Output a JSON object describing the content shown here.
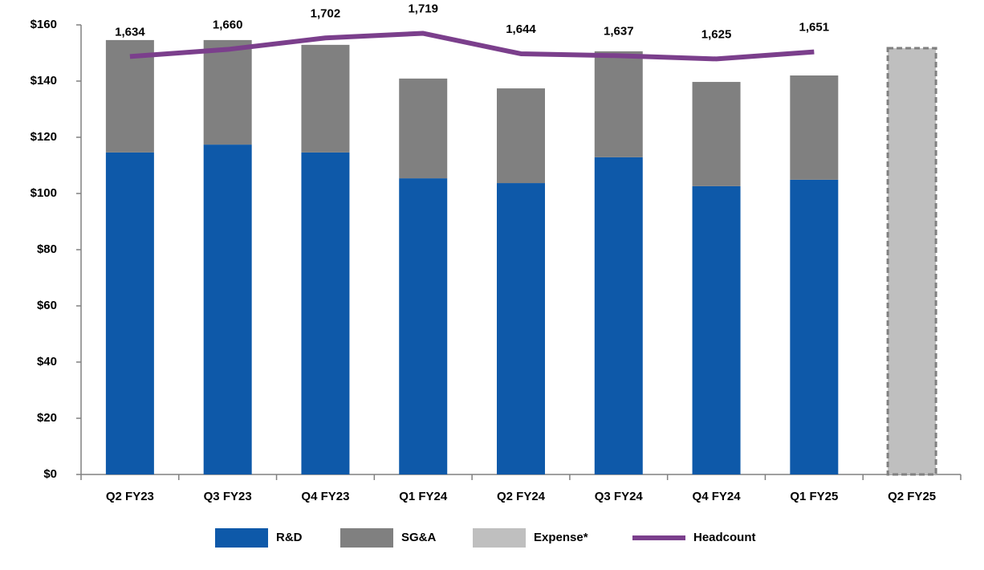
{
  "chart_data": {
    "type": "bar",
    "categories": [
      "Q2 FY23",
      "Q3 FY23",
      "Q4 FY23",
      "Q1 FY24",
      "Q2 FY24",
      "Q3 FY24",
      "Q4 FY24",
      "Q1 FY25",
      "Q2 FY25"
    ],
    "series": [
      {
        "name": "R&D",
        "type": "bar",
        "color": "#0e59a9",
        "values": [
          114.6,
          117.4,
          114.6,
          105.4,
          103.7,
          112.9,
          102.6,
          104.9,
          null
        ]
      },
      {
        "name": "SG&A",
        "type": "bar",
        "color": "#808080",
        "values": [
          40.0,
          37.2,
          38.3,
          35.5,
          33.7,
          37.7,
          37.1,
          37.1,
          null
        ]
      },
      {
        "name": "Expense*",
        "type": "bar",
        "color": "#bfbfbf",
        "border": "dashed",
        "values": [
          null,
          null,
          null,
          null,
          null,
          null,
          null,
          null,
          151.7
        ]
      },
      {
        "name": "Headcount",
        "type": "line",
        "axis": "y2",
        "color": "#7b3f8c",
        "values": [
          1634,
          1660,
          1702,
          1719,
          1644,
          1637,
          1625,
          1651,
          null
        ],
        "value_labels": [
          "1,634",
          "1,660",
          "1,702",
          "1,719",
          "1,644",
          "1,637",
          "1,625",
          "1,651",
          null
        ]
      }
    ],
    "ylim": [
      0,
      160
    ],
    "yticks": [
      {
        "value": 0,
        "label": "$0"
      },
      {
        "value": 20,
        "label": "$20"
      },
      {
        "value": 40,
        "label": "$40"
      },
      {
        "value": 60,
        "label": "$60"
      },
      {
        "value": 80,
        "label": "$80"
      },
      {
        "value": 100,
        "label": "$100"
      },
      {
        "value": 120,
        "label": "$120"
      },
      {
        "value": 140,
        "label": "$140"
      },
      {
        "value": 160,
        "label": "$160"
      }
    ],
    "y2lim": [
      100,
      1750
    ],
    "legend": "bottom"
  }
}
